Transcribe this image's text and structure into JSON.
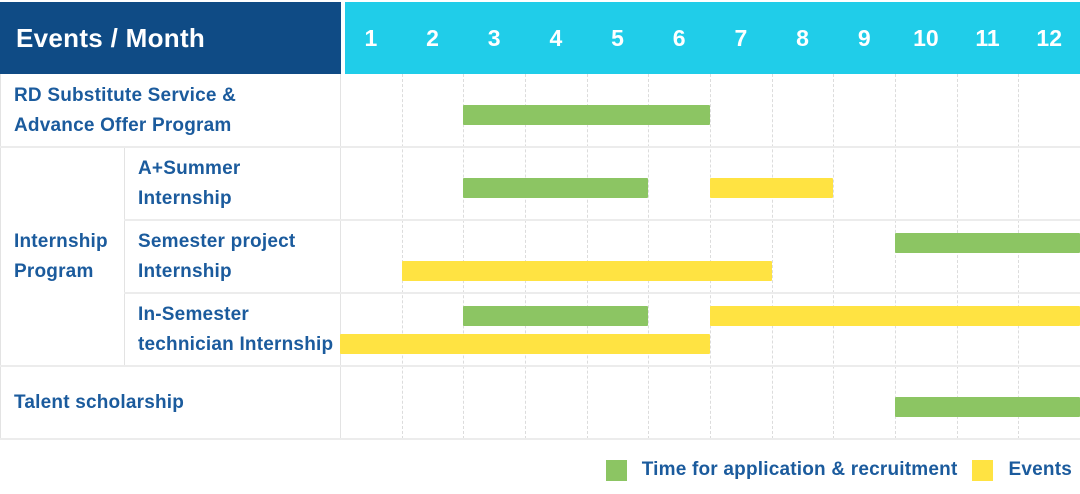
{
  "page": {
    "title": "Events / Month"
  },
  "colors": {
    "navy": "#0F4B85",
    "cyan": "#20CDE9",
    "green": "#8CC563",
    "yellow": "#FFE342",
    "label_blue": "#1B5B9D",
    "grid": "#E5E5E5"
  },
  "legend": {
    "application": "Time for application & recruitment",
    "events": "Events"
  },
  "chart_data": {
    "type": "gantt",
    "title": "Events / Month",
    "x": {
      "unit": "month",
      "ticks": [
        "1",
        "2",
        "3",
        "4",
        "5",
        "6",
        "7",
        "8",
        "9",
        "10",
        "11",
        "12"
      ],
      "range": [
        1,
        12
      ]
    },
    "legend": [
      {
        "key": "application",
        "label": "Time for application & recruitment",
        "color": "#8CC563"
      },
      {
        "key": "event",
        "label": "Events",
        "color": "#FFE342"
      }
    ],
    "group_label_lines": [
      "Internship",
      "Program"
    ],
    "rows": [
      {
        "event": "RD Substitute Service & Advance Offer Program",
        "label_lines": [
          "RD Substitute Service &",
          "Advance Offer Program"
        ],
        "group": null,
        "bars": [
          {
            "series": "application",
            "start_month": 3,
            "end_month": 6,
            "lane": "single"
          }
        ]
      },
      {
        "event": "A+Summer Internship",
        "label_lines": [
          "A+Summer",
          "Internship"
        ],
        "group": "Internship Program",
        "bars": [
          {
            "series": "application",
            "start_month": 3,
            "end_month": 5,
            "lane": "single"
          },
          {
            "series": "event",
            "start_month": 7,
            "end_month": 8,
            "lane": "single"
          }
        ]
      },
      {
        "event": "Semester project Internship",
        "label_lines": [
          "Semester project",
          "Internship"
        ],
        "group": "Internship Program",
        "bars": [
          {
            "series": "application",
            "start_month": 10,
            "end_month": 12,
            "lane": "upper"
          },
          {
            "series": "event",
            "start_month": 2,
            "end_month": 7,
            "lane": "lower"
          }
        ]
      },
      {
        "event": "In-Semester technician Internship",
        "label_lines": [
          "In-Semester",
          "technician Internship"
        ],
        "group": "Internship Program",
        "bars": [
          {
            "series": "application",
            "start_month": 3,
            "end_month": 5,
            "lane": "upper"
          },
          {
            "series": "event",
            "start_month": 7,
            "end_month": 12,
            "lane": "upper"
          },
          {
            "series": "event",
            "start_month": 1,
            "end_month": 6,
            "lane": "lower"
          }
        ]
      },
      {
        "event": "Talent scholarship",
        "label_lines": [
          "Talent scholarship"
        ],
        "group": null,
        "bars": [
          {
            "series": "application",
            "start_month": 10,
            "end_month": 12,
            "lane": "single"
          }
        ]
      }
    ]
  }
}
